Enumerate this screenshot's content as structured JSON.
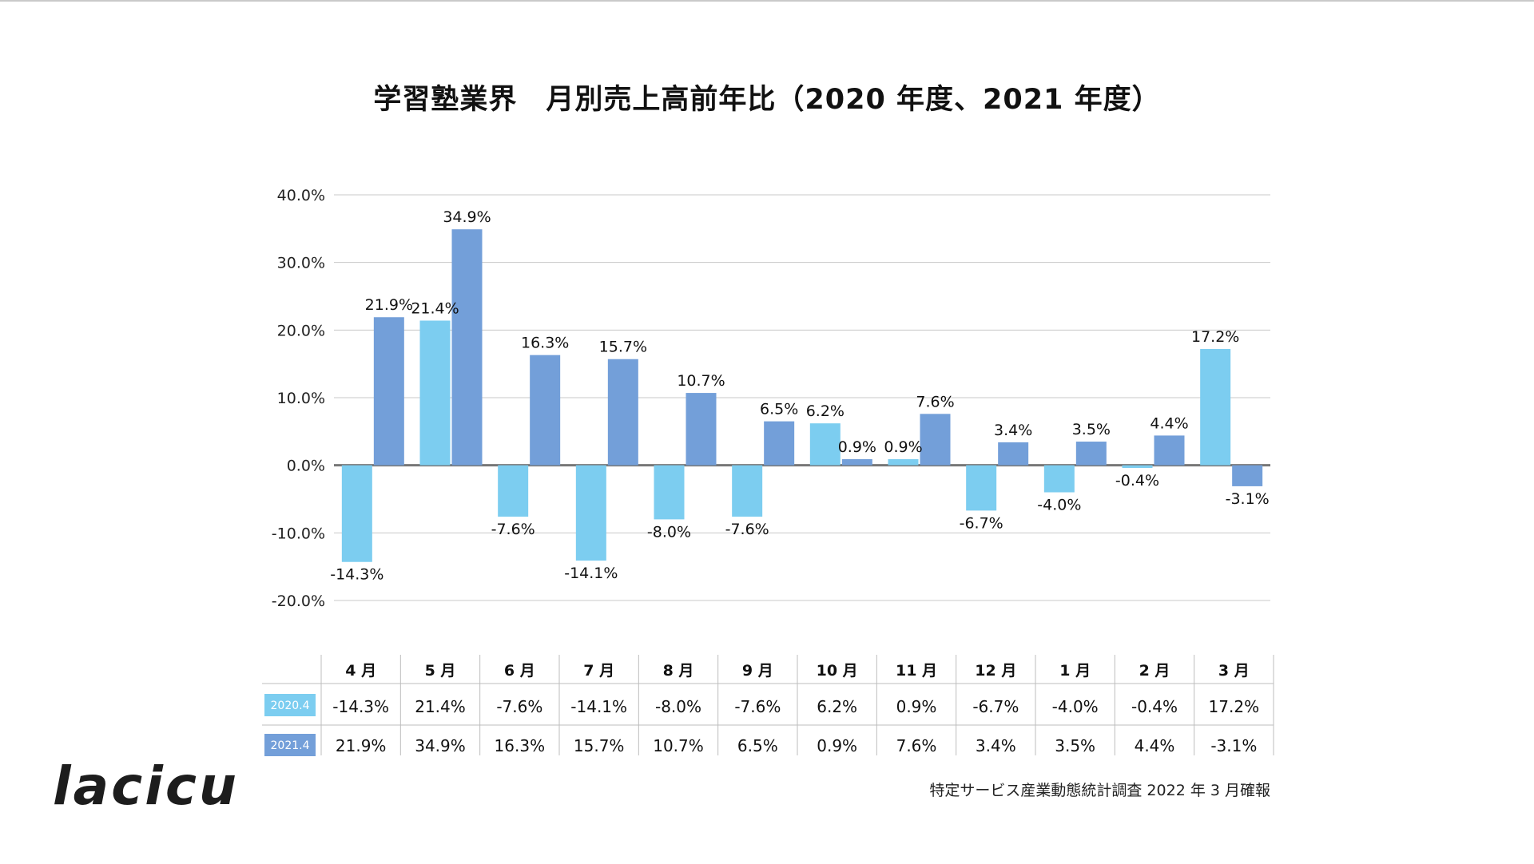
{
  "title": "学習塾業界　月別売上高前年比（2020 年度、2021 年度）",
  "source": "特定サービス産業動態統計調査 2022 年 3 月確報",
  "logo": "lacicu",
  "colors": {
    "series_2020": "#7ccdf0",
    "series_2021": "#739fd9",
    "axis": "#777777",
    "grid": "#c8c8c8"
  },
  "chart_data": {
    "type": "bar",
    "categories": [
      "4 月",
      "5 月",
      "6 月",
      "7 月",
      "8 月",
      "9 月",
      "10 月",
      "11 月",
      "12 月",
      "1 月",
      "2 月",
      "3 月"
    ],
    "series": [
      {
        "name": "2020.4",
        "values": [
          -14.3,
          21.4,
          -7.6,
          -14.1,
          -8.0,
          -7.6,
          6.2,
          0.9,
          -6.7,
          -4.0,
          -0.4,
          17.2
        ],
        "labels": [
          "-14.3%",
          "21.4%",
          "-7.6%",
          "-14.1%",
          "-8.0%",
          "-7.6%",
          "6.2%",
          "0.9%",
          "-6.7%",
          "-4.0%",
          "-0.4%",
          "17.2%"
        ]
      },
      {
        "name": "2021.4",
        "values": [
          21.9,
          34.9,
          16.3,
          15.7,
          10.7,
          6.5,
          0.9,
          7.6,
          3.4,
          3.5,
          4.4,
          -3.1
        ],
        "labels": [
          "21.9%",
          "34.9%",
          "16.3%",
          "15.7%",
          "10.7%",
          "6.5%",
          "0.9%",
          "7.6%",
          "3.4%",
          "3.5%",
          "4.4%",
          "-3.1%"
        ]
      }
    ],
    "ylim": [
      -20,
      40
    ],
    "yticks": [
      "40.0%",
      "30.0%",
      "20.0%",
      "10.0%",
      "0.0%",
      "-10.0%",
      "-20.0%"
    ],
    "grid": true,
    "data_table": true
  }
}
